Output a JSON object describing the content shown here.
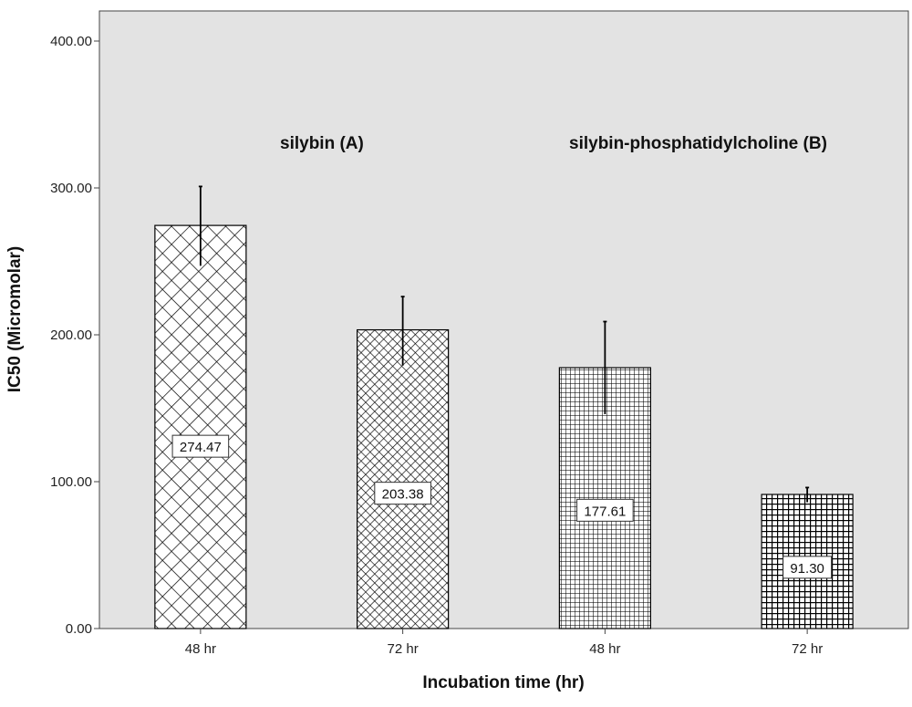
{
  "chart_data": {
    "type": "bar",
    "categories": [
      "48 hr",
      "72 hr",
      "48 hr",
      "72 hr"
    ],
    "values": [
      274.47,
      203.38,
      177.61,
      91.3
    ],
    "value_labels": [
      "274.47",
      "203.38",
      "177.61",
      "91.30"
    ],
    "error_upper": [
      301,
      226,
      209,
      96
    ],
    "error_lower": [
      247,
      179,
      146,
      86
    ],
    "ylim": [
      0,
      400
    ],
    "yticks": [
      0,
      100,
      200,
      300,
      400
    ],
    "ytick_labels": [
      "0.00",
      "100.00",
      "200.00",
      "300.00",
      "400.00"
    ],
    "xlabel": "Incubation time (hr)",
    "ylabel": "IC50 (Micromolar)",
    "grid": false,
    "annotations": [
      "silybin (A)",
      "silybin-phosphatidylcholine (B)"
    ],
    "bar_patterns": [
      "diagonal-crosshatch-large",
      "diagonal-crosshatch-small",
      "square-grid-fine",
      "square-grid-dark"
    ],
    "colors": {
      "plot_background": "#e3e3e3",
      "bar_fill": "#ffffff",
      "bar_pattern": "#000000"
    }
  }
}
